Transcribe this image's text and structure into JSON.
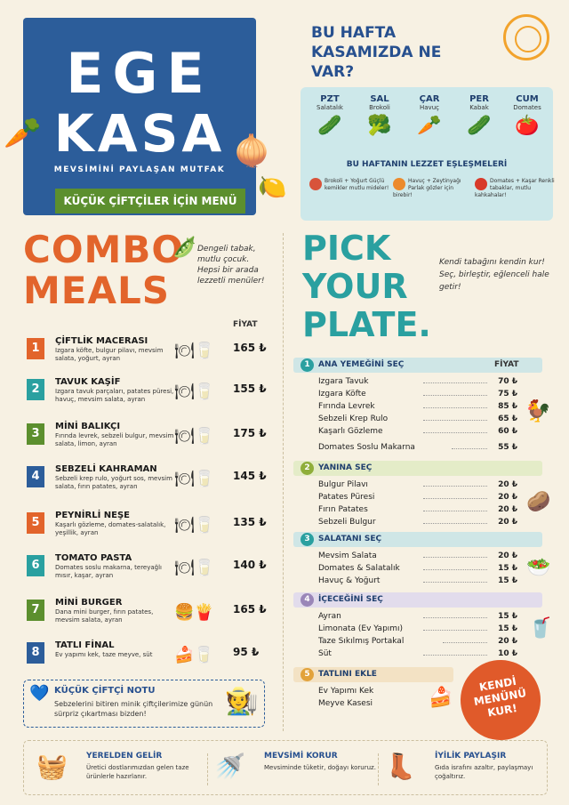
{
  "header": {
    "logo_line1": "EGE",
    "logo_line2": "KASA",
    "tagline": "MEVSİMİNİ PAYLAŞAN MUTFAK",
    "subtitle": "KÜÇÜK ÇİFTÇİLER İÇİN MENÜ"
  },
  "week": {
    "title_line1": "BU HAFTA",
    "title_line2": "KASAMIZDA NE VAR?",
    "days": [
      {
        "day": "PZT",
        "veg": "Salatalık",
        "icon": "🥒"
      },
      {
        "day": "SAL",
        "veg": "Brokoli",
        "icon": "🥦"
      },
      {
        "day": "ÇAR",
        "veg": "Havuç",
        "icon": "🥕"
      },
      {
        "day": "PER",
        "veg": "Kabak",
        "icon": "🥒"
      },
      {
        "day": "CUM",
        "veg": "Domates",
        "icon": "🍅"
      }
    ],
    "pair_title": "BU HAFTANIN LEZZET EŞLEŞMELERİ",
    "pairs": [
      {
        "text": "Brokoli + Yoğurt Güçlü kemikler mutlu mideler!",
        "color": "#d8533a"
      },
      {
        "text": "Havuç + Zeytinyağı Parlak gözler için birebir!",
        "color": "#ec8a2c"
      },
      {
        "text": "Domates + Kaşar Renkli tabaklar, mutlu kahkahalar!",
        "color": "#d83a2a"
      }
    ]
  },
  "combo": {
    "title_line1": "COMBO",
    "title_line2": "MEALS",
    "note": "Dengeli tabak, mutlu çocuk. Hepsi bir arada lezzetli menüler!",
    "price_header": "FİYAT",
    "items": [
      {
        "num": "1",
        "name": "ÇİFTLİK MACERASI",
        "desc": "Izgara köfte, bulgur pilavı, mevsim salata, yoğurt, ayran",
        "price": "165 ₺",
        "color": "#e2642b"
      },
      {
        "num": "2",
        "name": "TAVUK KAŞİF",
        "desc": "Izgara tavuk parçaları, patates püresi, havuç, mevsim salata, ayran",
        "price": "155 ₺",
        "color": "#2aa0a0"
      },
      {
        "num": "3",
        "name": "MİNİ BALIKÇI",
        "desc": "Fırında levrek, sebzeli bulgur, mevsim salata, limon, ayran",
        "price": "175 ₺",
        "color": "#5c8f2e"
      },
      {
        "num": "4",
        "name": "SEBZELİ KAHRAMAN",
        "desc": "Sebzeli krep rulo, yoğurt sos, mevsim salata, fırın patates, ayran",
        "price": "145 ₺",
        "color": "#2c5d9a"
      },
      {
        "num": "5",
        "name": "PEYNİRLİ NEŞE",
        "desc": "Kaşarlı gözleme, domates-salatalık, yeşillik, ayran",
        "price": "135 ₺",
        "color": "#e2642b"
      },
      {
        "num": "6",
        "name": "TOMATO PASTA",
        "desc": "Domates soslu makarna, tereyağlı mısır, kaşar, ayran",
        "price": "140 ₺",
        "color": "#2aa0a0"
      },
      {
        "num": "7",
        "name": "MİNİ BURGER",
        "desc": "Dana mini burger, fırın patates, mevsim salata, ayran",
        "price": "165 ₺",
        "color": "#5c8f2e"
      },
      {
        "num": "8",
        "name": "TATLI FİNAL",
        "desc": "Ev yapımı kek, taze meyve, süt",
        "price": "95 ₺",
        "color": "#2c5d9a"
      }
    ],
    "farmer_title": "KÜÇÜK ÇİFTÇİ NOTU",
    "farmer_text": "Sebzelerini bitiren minik çiftçilerimize günün sürpriz çıkartması bizden!"
  },
  "pick": {
    "title_line1": "PICK",
    "title_line2": "YOUR",
    "title_line3": "PLATE.",
    "note": "Kendi tabağını kendin kur! Seç, birleştir, eğlenceli hale getir!",
    "sections": [
      {
        "num": "1",
        "title": "ANA YEMEĞİNİ SEÇ",
        "price_header": "FİYAT",
        "color": "#2aa0a0",
        "bg": "#cfe6e6",
        "items": [
          {
            "name": "Izgara Tavuk",
            "price": "70 ₺"
          },
          {
            "name": "Izgara Köfte",
            "price": "75 ₺"
          },
          {
            "name": "Fırında Levrek",
            "price": "85 ₺"
          },
          {
            "name": "Sebzeli Krep Rulo",
            "price": "65 ₺"
          },
          {
            "name": "Kaşarlı Gözleme",
            "price": "60 ₺"
          },
          {
            "name": "Domates Soslu Makarna",
            "price": "55 ₺"
          }
        ]
      },
      {
        "num": "2",
        "title": "YANINA SEÇ",
        "color": "#8fae3a",
        "bg": "#e4ecc8",
        "items": [
          {
            "name": "Bulgur Pilavı",
            "price": "20 ₺"
          },
          {
            "name": "Patates Püresi",
            "price": "20 ₺"
          },
          {
            "name": "Fırın Patates",
            "price": "20 ₺"
          },
          {
            "name": "Sebzeli Bulgur",
            "price": "20 ₺"
          }
        ]
      },
      {
        "num": "3",
        "title": "SALATANI SEÇ",
        "color": "#2aa0a0",
        "bg": "#cfe6e6",
        "items": [
          {
            "name": "Mevsim Salata",
            "price": "20 ₺"
          },
          {
            "name": "Domates & Salatalık",
            "price": "15 ₺"
          },
          {
            "name": "Havuç & Yoğurt",
            "price": "15 ₺"
          }
        ]
      },
      {
        "num": "4",
        "title": "İÇECEĞİNİ SEÇ",
        "color": "#9a86b8",
        "bg": "#e2dcec",
        "items": [
          {
            "name": "Ayran",
            "price": "15 ₺"
          },
          {
            "name": "Limonata (Ev Yapımı)",
            "price": "15 ₺"
          },
          {
            "name": "Taze Sıkılmış Portakal",
            "price": "20 ₺"
          },
          {
            "name": "Süt",
            "price": "10 ₺"
          }
        ]
      },
      {
        "num": "5",
        "title": "TATLINI EKLE",
        "color": "#e2a23a",
        "bg": "#f3e2c4",
        "items": [
          {
            "name": "Ev Yapımı Kek",
            "price": ""
          },
          {
            "name": "Meyve Kasesi",
            "price": ""
          }
        ]
      }
    ],
    "badge": "KENDİ MENÜNÜ KUR!"
  },
  "footer": [
    {
      "title": "YERELDEN GELİR",
      "text": "Üretici dostlarımızdan gelen taze ürünlerle hazırlanır.",
      "icon": "🧺"
    },
    {
      "title": "MEVSİMİ KORUR",
      "text": "Mevsiminde tüketir, doğayı koruruz.",
      "icon": "🚿"
    },
    {
      "title": "İYİLİK PAYLAŞIR",
      "text": "Gıda israfını azaltır, paylaşmayı çoğaltırız.",
      "icon": "👢"
    }
  ]
}
